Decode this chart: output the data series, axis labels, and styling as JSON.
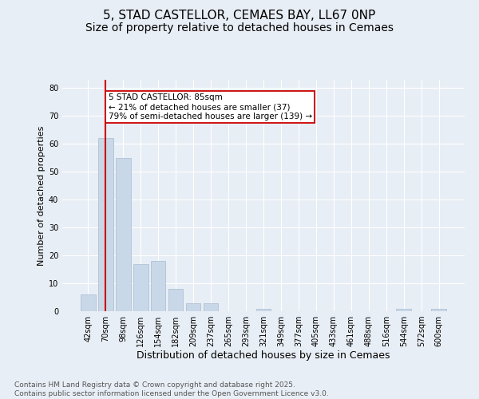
{
  "title": "5, STAD CASTELLOR, CEMAES BAY, LL67 0NP",
  "subtitle": "Size of property relative to detached houses in Cemaes",
  "xlabel": "Distribution of detached houses by size in Cemaes",
  "ylabel": "Number of detached properties",
  "categories": [
    "42sqm",
    "70sqm",
    "98sqm",
    "126sqm",
    "154sqm",
    "182sqm",
    "209sqm",
    "237sqm",
    "265sqm",
    "293sqm",
    "321sqm",
    "349sqm",
    "377sqm",
    "405sqm",
    "433sqm",
    "461sqm",
    "488sqm",
    "516sqm",
    "544sqm",
    "572sqm",
    "600sqm"
  ],
  "values": [
    6,
    62,
    55,
    17,
    18,
    8,
    3,
    3,
    0,
    0,
    1,
    0,
    0,
    0,
    0,
    0,
    0,
    0,
    1,
    0,
    1
  ],
  "bar_color": "#c8d8e8",
  "bar_edge_color": "#aabbd0",
  "background_color": "#e8eef5",
  "grid_color": "#ffffff",
  "vline_x": 1,
  "vline_color": "#cc0000",
  "annotation_text": "5 STAD CASTELLOR: 85sqm\n← 21% of detached houses are smaller (37)\n79% of semi-detached houses are larger (139) →",
  "annotation_box_color": "#ffffff",
  "annotation_box_edge_color": "#cc0000",
  "ylim": [
    0,
    83
  ],
  "yticks": [
    0,
    10,
    20,
    30,
    40,
    50,
    60,
    70,
    80
  ],
  "footer": "Contains HM Land Registry data © Crown copyright and database right 2025.\nContains public sector information licensed under the Open Government Licence v3.0.",
  "title_fontsize": 11,
  "subtitle_fontsize": 10,
  "xlabel_fontsize": 9,
  "ylabel_fontsize": 8,
  "tick_fontsize": 7,
  "footer_fontsize": 6.5,
  "annotation_fontsize": 7.5
}
